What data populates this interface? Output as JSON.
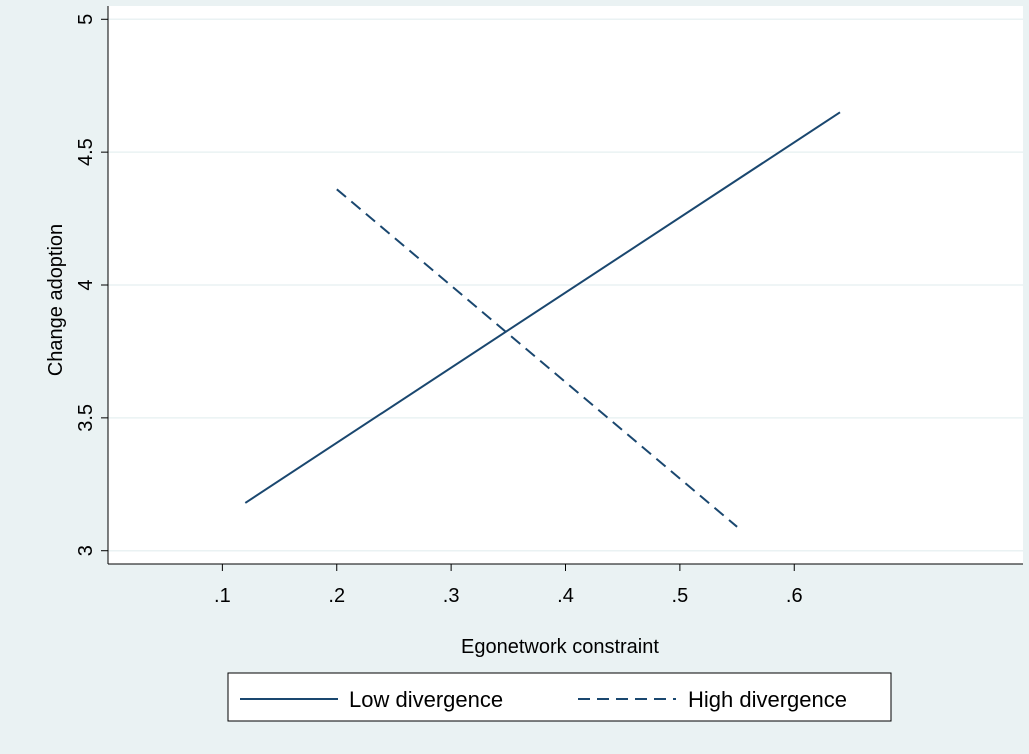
{
  "chart_data": {
    "type": "line",
    "title": "",
    "xlabel": "Egonetwork constraint",
    "ylabel": "Change adoption",
    "xlim": [
      0.0,
      0.8
    ],
    "ylim": [
      2.95,
      5.05
    ],
    "x_ticks": [
      0.1,
      0.2,
      0.3,
      0.4,
      0.5,
      0.6
    ],
    "x_tick_labels": [
      ".1",
      ".2",
      ".3",
      ".4",
      ".5",
      ".6"
    ],
    "y_ticks": [
      3,
      3.5,
      4,
      4.5,
      5
    ],
    "y_tick_labels": [
      "3",
      "3.5",
      "4",
      "4.5",
      "5"
    ],
    "grid": true,
    "legend_position": "bottom",
    "series": [
      {
        "name": "Low divergence",
        "style": "solid",
        "color": "#1a476f",
        "x": [
          0.12,
          0.64
        ],
        "y": [
          3.18,
          4.65
        ]
      },
      {
        "name": "High divergence",
        "style": "dashed",
        "color": "#1a476f",
        "x": [
          0.2,
          0.55
        ],
        "y": [
          4.36,
          3.09
        ]
      }
    ]
  },
  "colors": {
    "background": "#eaf2f3",
    "plot_background": "#ffffff",
    "gridline": "#eaf2f3",
    "series": "#1a476f"
  }
}
